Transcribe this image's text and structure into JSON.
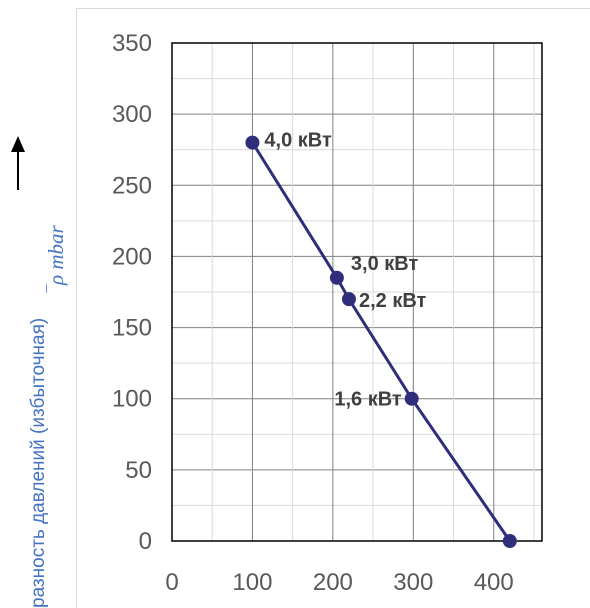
{
  "chart_data": {
    "type": "line",
    "title": "",
    "xlabel": "",
    "ylabel": "разность давлений (избыточная)",
    "ylabel_unit": "‾ρ mbar",
    "xlim": [
      0,
      460
    ],
    "ylim": [
      0,
      350
    ],
    "x_ticks": [
      0,
      100,
      200,
      300,
      400
    ],
    "y_ticks": [
      0,
      50,
      100,
      150,
      200,
      250,
      300,
      350
    ],
    "grid": true,
    "series": [
      {
        "color": "#2e2e7a",
        "points": [
          {
            "x": 100,
            "y": 280,
            "label": "4,0 кВт"
          },
          {
            "x": 205,
            "y": 185,
            "label": "3,0 кВт"
          },
          {
            "x": 220,
            "y": 170,
            "label": "2,2 кВт"
          },
          {
            "x": 298,
            "y": 100,
            "label": "1,6 кВт"
          },
          {
            "x": 420,
            "y": 0,
            "label": ""
          }
        ]
      }
    ]
  }
}
